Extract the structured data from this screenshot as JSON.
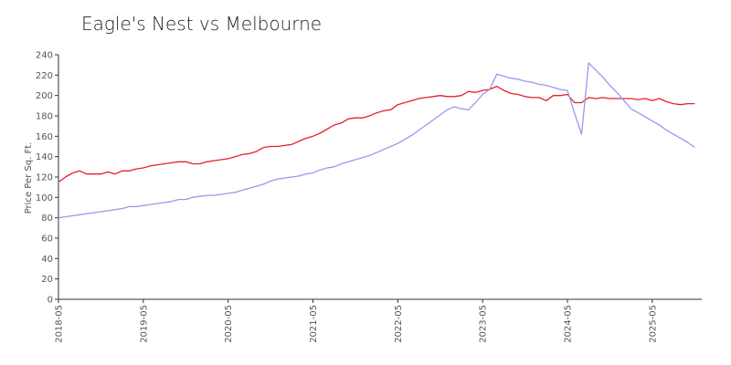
{
  "chart_data": {
    "type": "line",
    "title": "Eagle's Nest vs Melbourne",
    "xlabel": "",
    "ylabel": "Price Per Sq. Ft.",
    "ylim": [
      0,
      240
    ],
    "yticks": [
      0,
      20,
      40,
      60,
      80,
      100,
      120,
      140,
      160,
      180,
      200,
      220,
      240
    ],
    "xlim": [
      "2018-05",
      "2025-12"
    ],
    "xticks": [
      "2018-05",
      "2019-05",
      "2020-05",
      "2021-05",
      "2022-05",
      "2023-05",
      "2024-05",
      "2025-05"
    ],
    "grid": false,
    "legend": "none",
    "series": [
      {
        "color": "#e8202a",
        "points": [
          [
            "2018-05",
            115
          ],
          [
            "2018-06",
            120
          ],
          [
            "2018-07",
            124
          ],
          [
            "2018-08",
            126
          ],
          [
            "2018-09",
            123
          ],
          [
            "2018-10",
            123
          ],
          [
            "2018-11",
            123
          ],
          [
            "2018-12",
            125
          ],
          [
            "2019-01",
            123
          ],
          [
            "2019-02",
            126
          ],
          [
            "2019-03",
            126
          ],
          [
            "2019-04",
            128
          ],
          [
            "2019-05",
            129
          ],
          [
            "2019-06",
            131
          ],
          [
            "2019-07",
            132
          ],
          [
            "2019-08",
            133
          ],
          [
            "2019-09",
            134
          ],
          [
            "2019-10",
            135
          ],
          [
            "2019-11",
            135
          ],
          [
            "2019-12",
            133
          ],
          [
            "2020-01",
            133
          ],
          [
            "2020-02",
            135
          ],
          [
            "2020-03",
            136
          ],
          [
            "2020-04",
            137
          ],
          [
            "2020-05",
            138
          ],
          [
            "2020-06",
            140
          ],
          [
            "2020-07",
            142
          ],
          [
            "2020-08",
            143
          ],
          [
            "2020-09",
            145
          ],
          [
            "2020-10",
            149
          ],
          [
            "2020-11",
            150
          ],
          [
            "2020-12",
            150
          ],
          [
            "2021-01",
            151
          ],
          [
            "2021-02",
            152
          ],
          [
            "2021-03",
            155
          ],
          [
            "2021-04",
            158
          ],
          [
            "2021-05",
            160
          ],
          [
            "2021-06",
            163
          ],
          [
            "2021-07",
            167
          ],
          [
            "2021-08",
            171
          ],
          [
            "2021-09",
            173
          ],
          [
            "2021-10",
            177
          ],
          [
            "2021-11",
            178
          ],
          [
            "2021-12",
            178
          ],
          [
            "2022-01",
            180
          ],
          [
            "2022-02",
            183
          ],
          [
            "2022-03",
            185
          ],
          [
            "2022-04",
            186
          ],
          [
            "2022-05",
            191
          ],
          [
            "2022-06",
            193
          ],
          [
            "2022-07",
            195
          ],
          [
            "2022-08",
            197
          ],
          [
            "2022-09",
            198
          ],
          [
            "2022-10",
            199
          ],
          [
            "2022-11",
            200
          ],
          [
            "2022-12",
            199
          ],
          [
            "2023-01",
            199
          ],
          [
            "2023-02",
            200
          ],
          [
            "2023-03",
            204
          ],
          [
            "2023-04",
            203
          ],
          [
            "2023-05",
            205
          ],
          [
            "2023-06",
            206
          ],
          [
            "2023-07",
            209
          ],
          [
            "2023-08",
            205
          ],
          [
            "2023-09",
            202
          ],
          [
            "2023-10",
            201
          ],
          [
            "2023-11",
            199
          ],
          [
            "2023-12",
            198
          ],
          [
            "2024-01",
            198
          ],
          [
            "2024-02",
            195
          ],
          [
            "2024-03",
            200
          ],
          [
            "2024-04",
            200
          ],
          [
            "2024-05",
            201
          ],
          [
            "2024-06",
            193
          ],
          [
            "2024-07",
            193
          ],
          [
            "2024-08",
            198
          ],
          [
            "2024-09",
            197
          ],
          [
            "2024-10",
            198
          ],
          [
            "2024-11",
            197
          ],
          [
            "2024-12",
            197
          ],
          [
            "2025-01",
            197
          ],
          [
            "2025-02",
            197
          ],
          [
            "2025-03",
            196
          ],
          [
            "2025-04",
            197
          ],
          [
            "2025-05",
            195
          ],
          [
            "2025-06",
            197
          ],
          [
            "2025-07",
            194
          ],
          [
            "2025-08",
            192
          ],
          [
            "2025-09",
            191
          ],
          [
            "2025-10",
            192
          ],
          [
            "2025-11",
            192
          ]
        ]
      },
      {
        "color": "#9999ee",
        "points": [
          [
            "2018-05",
            80
          ],
          [
            "2018-06",
            81
          ],
          [
            "2018-07",
            82
          ],
          [
            "2018-08",
            83
          ],
          [
            "2018-09",
            84
          ],
          [
            "2018-10",
            85
          ],
          [
            "2018-11",
            86
          ],
          [
            "2018-12",
            87
          ],
          [
            "2019-01",
            88
          ],
          [
            "2019-02",
            89
          ],
          [
            "2019-03",
            91
          ],
          [
            "2019-04",
            91
          ],
          [
            "2019-05",
            92
          ],
          [
            "2019-06",
            93
          ],
          [
            "2019-07",
            94
          ],
          [
            "2019-08",
            95
          ],
          [
            "2019-09",
            96
          ],
          [
            "2019-10",
            98
          ],
          [
            "2019-11",
            98
          ],
          [
            "2019-12",
            100
          ],
          [
            "2020-01",
            101
          ],
          [
            "2020-02",
            102
          ],
          [
            "2020-03",
            102
          ],
          [
            "2020-04",
            103
          ],
          [
            "2020-05",
            104
          ],
          [
            "2020-06",
            105
          ],
          [
            "2020-07",
            107
          ],
          [
            "2020-08",
            109
          ],
          [
            "2020-09",
            111
          ],
          [
            "2020-10",
            113
          ],
          [
            "2020-11",
            116
          ],
          [
            "2020-12",
            118
          ],
          [
            "2021-01",
            119
          ],
          [
            "2021-02",
            120
          ],
          [
            "2021-03",
            121
          ],
          [
            "2021-04",
            123
          ],
          [
            "2021-05",
            124
          ],
          [
            "2021-06",
            127
          ],
          [
            "2021-07",
            129
          ],
          [
            "2021-08",
            130
          ],
          [
            "2021-09",
            133
          ],
          [
            "2021-10",
            135
          ],
          [
            "2021-11",
            137
          ],
          [
            "2021-12",
            139
          ],
          [
            "2022-01",
            141
          ],
          [
            "2022-02",
            144
          ],
          [
            "2022-03",
            147
          ],
          [
            "2022-04",
            150
          ],
          [
            "2022-05",
            153
          ],
          [
            "2022-06",
            157
          ],
          [
            "2022-07",
            161
          ],
          [
            "2022-08",
            166
          ],
          [
            "2022-09",
            171
          ],
          [
            "2022-10",
            176
          ],
          [
            "2022-11",
            181
          ],
          [
            "2022-12",
            186
          ],
          [
            "2023-01",
            189
          ],
          [
            "2023-02",
            187
          ],
          [
            "2023-03",
            186
          ],
          [
            "2023-04",
            193
          ],
          [
            "2023-05",
            201
          ],
          [
            "2023-06",
            206
          ],
          [
            "2023-07",
            221
          ],
          [
            "2023-08",
            219
          ],
          [
            "2023-09",
            217
          ],
          [
            "2023-10",
            216
          ],
          [
            "2023-11",
            214
          ],
          [
            "2023-12",
            213
          ],
          [
            "2024-01",
            211
          ],
          [
            "2024-02",
            210
          ],
          [
            "2024-03",
            208
          ],
          [
            "2024-04",
            206
          ],
          [
            "2024-05",
            205
          ],
          [
            "2024-06",
            183
          ],
          [
            "2024-07",
            162
          ],
          [
            "2024-08",
            232
          ],
          [
            "2024-09",
            225
          ],
          [
            "2024-10",
            218
          ],
          [
            "2024-11",
            210
          ],
          [
            "2024-12",
            203
          ],
          [
            "2025-01",
            195
          ],
          [
            "2025-02",
            187
          ],
          [
            "2025-03",
            183
          ],
          [
            "2025-04",
            179
          ],
          [
            "2025-05",
            175
          ],
          [
            "2025-06",
            171
          ],
          [
            "2025-07",
            166
          ],
          [
            "2025-08",
            162
          ],
          [
            "2025-09",
            158
          ],
          [
            "2025-10",
            154
          ],
          [
            "2025-11",
            149
          ]
        ]
      }
    ]
  }
}
